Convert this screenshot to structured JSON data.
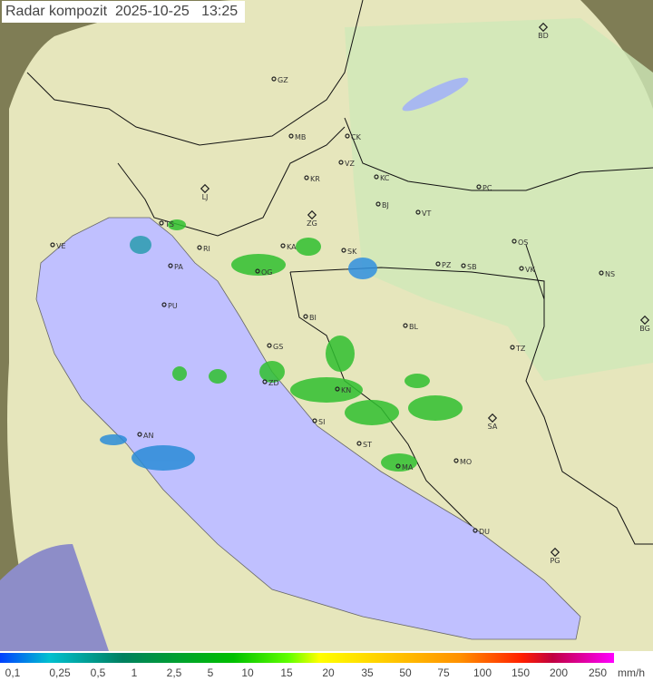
{
  "title": {
    "label": "Radar kompozit",
    "date": "2025-10-25",
    "time": "13:25"
  },
  "legend": {
    "labels": [
      "0,1",
      "0,25",
      "0,5",
      "1",
      "2,5",
      "5",
      "10",
      "15",
      "20",
      "35",
      "50",
      "75",
      "100",
      "150",
      "200",
      "250"
    ],
    "unit": "mm/h"
  },
  "cities": [
    "BD",
    "GZ",
    "MB",
    "CK",
    "VZ",
    "KR",
    "KC",
    "PC",
    "LJ",
    "BJ",
    "VT",
    "ZG",
    "TS",
    "OS",
    "VE",
    "RI",
    "KA",
    "SK",
    "PZ",
    "SB",
    "VK",
    "NS",
    "PA",
    "OG",
    "PU",
    "BI",
    "BL",
    "BG",
    "GS",
    "TZ",
    "ZD",
    "KN",
    "SA",
    "SI",
    "AN",
    "ST",
    "MO",
    "MA",
    "DU",
    "PG"
  ],
  "colors": {
    "sea": "#c0c0ff",
    "land": "#e8ecb8",
    "outside": "#8a8a5a",
    "rain": "#30c030"
  }
}
